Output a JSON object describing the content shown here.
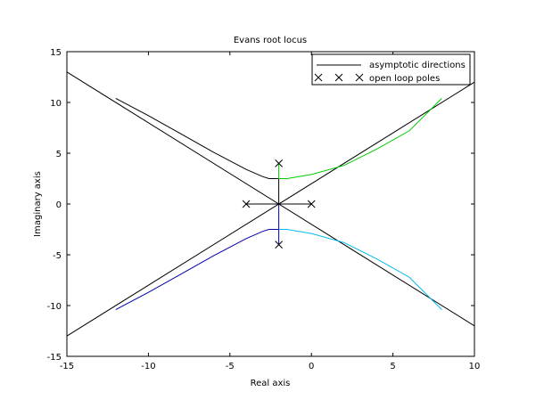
{
  "chart_data": {
    "type": "line",
    "title": "Evans root locus",
    "xlabel": "Real axis",
    "ylabel": "Imaginary axis",
    "xlim": [
      -15,
      10
    ],
    "ylim": [
      -15,
      15
    ],
    "xticks": [
      -15,
      -10,
      -5,
      0,
      5,
      10
    ],
    "yticks": [
      -15,
      -10,
      -5,
      0,
      5,
      10,
      15
    ],
    "legend": {
      "position": "top-right",
      "entries": [
        {
          "label": "asymptotic directions",
          "marker": "line",
          "color": "#000000"
        },
        {
          "label": "open loop poles",
          "marker": "x",
          "color": "#000000"
        }
      ]
    },
    "series": [
      {
        "color": "#000000",
        "points": [
          [
            -15,
            13
          ],
          [
            10,
            -12
          ]
        ]
      },
      {
        "color": "#000000",
        "points": [
          [
            -15,
            -13
          ],
          [
            10,
            12
          ]
        ]
      },
      {
        "color": "#000000",
        "points": [
          [
            -12,
            10.4
          ],
          [
            -10,
            8.7
          ],
          [
            -8,
            6.9
          ],
          [
            -6,
            5.1
          ],
          [
            -4,
            3.4
          ],
          [
            -3,
            2.7
          ],
          [
            -2.6,
            2.5
          ],
          [
            -2,
            2.5
          ],
          [
            -2,
            0
          ]
        ]
      },
      {
        "color": "#000000",
        "points": [
          [
            -4,
            0
          ],
          [
            0,
            0
          ]
        ]
      },
      {
        "color": "#00cc00",
        "points": [
          [
            -2,
            4
          ],
          [
            -2,
            2.5
          ],
          [
            -1.5,
            2.5
          ],
          [
            0,
            2.9
          ],
          [
            2,
            3.8
          ],
          [
            4,
            5.4
          ],
          [
            6,
            7.2
          ],
          [
            8,
            10.4
          ]
        ]
      },
      {
        "color": "#0000aa",
        "points": [
          [
            -12,
            -10.4
          ],
          [
            -10,
            -8.7
          ],
          [
            -8,
            -6.9
          ],
          [
            -6,
            -5.1
          ],
          [
            -4,
            -3.4
          ],
          [
            -3,
            -2.7
          ],
          [
            -2.6,
            -2.5
          ],
          [
            -2,
            -2.5
          ],
          [
            -2,
            0
          ]
        ]
      },
      {
        "color": "#00bbee",
        "points": [
          [
            -2,
            -2.5
          ],
          [
            -1.5,
            -2.5
          ],
          [
            0,
            -2.9
          ],
          [
            2,
            -3.8
          ],
          [
            4,
            -5.4
          ],
          [
            6,
            -7.2
          ],
          [
            8,
            -10.4
          ]
        ]
      },
      {
        "color": "#0000aa",
        "points": [
          [
            -2,
            -4
          ],
          [
            -2,
            -2.5
          ]
        ]
      }
    ],
    "poles": [
      [
        -4,
        0
      ],
      [
        0,
        0
      ],
      [
        -2,
        4
      ],
      [
        -2,
        -4
      ]
    ]
  }
}
